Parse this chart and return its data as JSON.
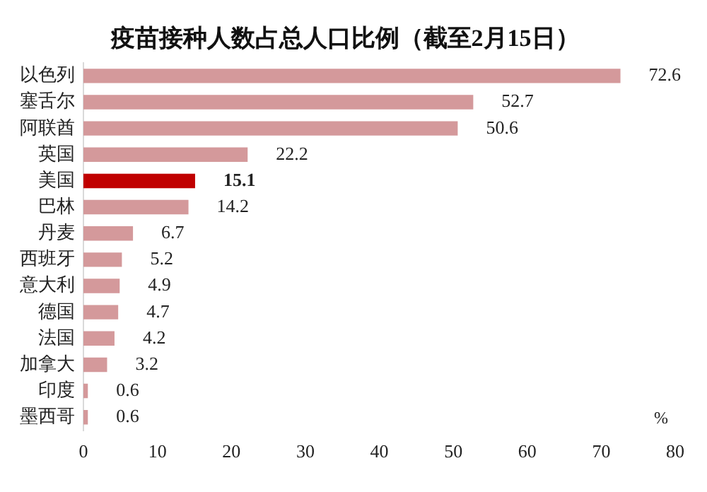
{
  "chart_data": {
    "type": "bar",
    "orientation": "horizontal",
    "title": "疫苗接种人数占总人口比例（截至2月15日）",
    "xlabel": "%",
    "categories": [
      "以色列",
      "塞舌尔",
      "阿联酋",
      "英国",
      "美国",
      "巴林",
      "丹麦",
      "西班牙",
      "意大利",
      "德国",
      "法国",
      "加拿大",
      "印度",
      "墨西哥"
    ],
    "values": [
      72.6,
      52.7,
      50.6,
      22.2,
      15.1,
      14.2,
      6.7,
      5.2,
      4.9,
      4.7,
      4.2,
      3.2,
      0.6,
      0.6
    ],
    "colors": [
      "#d4999b",
      "#d4999b",
      "#d4999b",
      "#d4999b",
      "#c00000",
      "#d4999b",
      "#d4999b",
      "#d4999b",
      "#d4999b",
      "#d4999b",
      "#d4999b",
      "#d4999b",
      "#d4999b",
      "#d4999b"
    ],
    "xlim": [
      0,
      80
    ],
    "xticks": [
      0,
      10,
      20,
      30,
      40,
      50,
      60,
      70,
      80
    ],
    "grid": false,
    "legend": false,
    "data_labels": true
  }
}
